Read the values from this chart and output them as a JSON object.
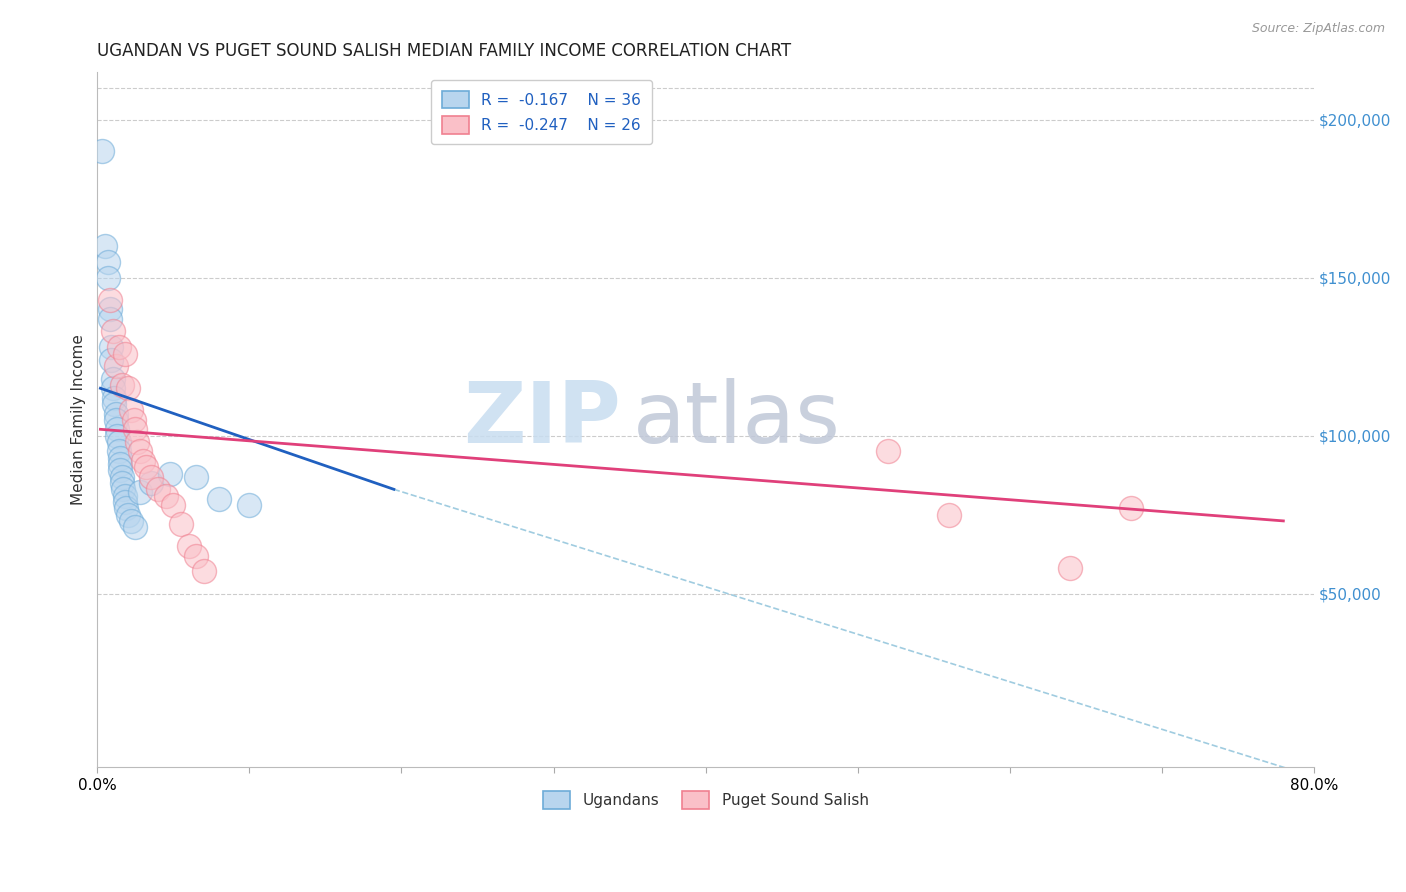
{
  "title": "UGANDAN VS PUGET SOUND SALISH MEDIAN FAMILY INCOME CORRELATION CHART",
  "source": "Source: ZipAtlas.com",
  "ylabel": "Median Family Income",
  "xlim": [
    0.0,
    0.8
  ],
  "ylim": [
    -5000,
    215000
  ],
  "ytick_labels": [
    "$50,000",
    "$100,000",
    "$150,000",
    "$200,000"
  ],
  "ytick_values": [
    50000,
    100000,
    150000,
    200000
  ],
  "xtick_values": [
    0.0,
    0.1,
    0.2,
    0.3,
    0.4,
    0.5,
    0.6,
    0.7,
    0.8
  ],
  "xtick_labels": [
    "0.0%",
    "",
    "",
    "",
    "",
    "",
    "",
    "",
    "80.0%"
  ],
  "legend_r1": "R =  -0.167    N = 36",
  "legend_r2": "R =  -0.247    N = 26",
  "legend_label1": "Ugandans",
  "legend_label2": "Puget Sound Salish",
  "blue_line_color": "#2060c0",
  "pink_line_color": "#e0407a",
  "blue_scatter_edge": "#6dabd8",
  "blue_scatter_face": "#b8d5ee",
  "pink_scatter_edge": "#f08090",
  "pink_scatter_face": "#fac0c8",
  "dashed_color": "#a0cce0",
  "blue_scatter_x": [
    0.003,
    0.005,
    0.007,
    0.007,
    0.008,
    0.008,
    0.009,
    0.009,
    0.01,
    0.01,
    0.011,
    0.011,
    0.012,
    0.012,
    0.013,
    0.013,
    0.014,
    0.014,
    0.015,
    0.015,
    0.015,
    0.016,
    0.016,
    0.017,
    0.018,
    0.018,
    0.019,
    0.02,
    0.022,
    0.025,
    0.028,
    0.035,
    0.048,
    0.065,
    0.08,
    0.1
  ],
  "blue_scatter_y": [
    190000,
    160000,
    155000,
    150000,
    140000,
    137000,
    128000,
    124000,
    118000,
    115000,
    112000,
    110000,
    107000,
    105000,
    102000,
    100000,
    98000,
    95000,
    93000,
    91000,
    89000,
    87000,
    85000,
    83000,
    81000,
    79000,
    77000,
    75000,
    73000,
    71000,
    82000,
    85000,
    88000,
    87000,
    80000,
    78000
  ],
  "pink_scatter_x": [
    0.008,
    0.01,
    0.012,
    0.014,
    0.016,
    0.018,
    0.02,
    0.022,
    0.024,
    0.025,
    0.026,
    0.028,
    0.03,
    0.032,
    0.035,
    0.04,
    0.045,
    0.05,
    0.055,
    0.06,
    0.065,
    0.07,
    0.52,
    0.56,
    0.64,
    0.68
  ],
  "pink_scatter_y": [
    143000,
    133000,
    122000,
    128000,
    116000,
    126000,
    115000,
    108000,
    105000,
    102000,
    98000,
    95000,
    92000,
    90000,
    87000,
    83000,
    81000,
    78000,
    72000,
    65000,
    62000,
    57000,
    95000,
    75000,
    58000,
    77000
  ],
  "blue_line_x": [
    0.002,
    0.195
  ],
  "blue_line_y": [
    115000,
    83000
  ],
  "pink_line_x": [
    0.002,
    0.78
  ],
  "pink_line_y": [
    102000,
    73000
  ],
  "dashed_line_x": [
    0.195,
    0.8
  ],
  "dashed_line_y": [
    83000,
    -8000
  ],
  "watermark_zip": "ZIP",
  "watermark_atlas": "atlas",
  "background_color": "#ffffff",
  "grid_color": "#cccccc",
  "title_fontsize": 12,
  "axis_label_fontsize": 11,
  "tick_fontsize": 11,
  "scatter_size": 300,
  "scatter_alpha": 0.55,
  "right_tick_color": "#4090d0"
}
